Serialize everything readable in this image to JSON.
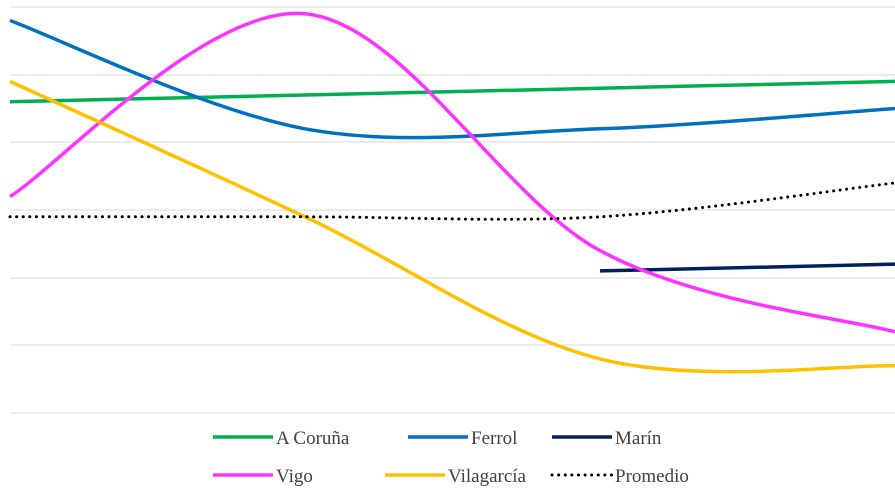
{
  "chart_data": {
    "type": "line",
    "title": "",
    "xlabel": "",
    "ylabel": "",
    "x": [
      0,
      1,
      2,
      3
    ],
    "ylim": [
      0,
      6
    ],
    "grid": true,
    "legend_position": "bottom",
    "series": [
      {
        "name": "A Coruña",
        "color": "#00b050",
        "values": [
          4.6,
          4.7,
          4.8,
          4.9
        ]
      },
      {
        "name": "Ferrol",
        "color": "#0070c0",
        "values": [
          5.8,
          4.2,
          4.2,
          4.5
        ]
      },
      {
        "name": "Marín",
        "color": "#002060",
        "values": [
          null,
          null,
          2.1,
          2.2
        ]
      },
      {
        "name": "Vigo",
        "color": "#ff33ff",
        "values": [
          3.2,
          5.9,
          2.4,
          1.2
        ]
      },
      {
        "name": "Vilagarcía",
        "color": "#ffc000",
        "values": [
          4.9,
          2.9,
          0.8,
          0.7
        ]
      },
      {
        "name": "Promedio",
        "color": "#000000",
        "dashed": true,
        "values": [
          2.9,
          2.9,
          2.9,
          3.4
        ]
      }
    ]
  }
}
